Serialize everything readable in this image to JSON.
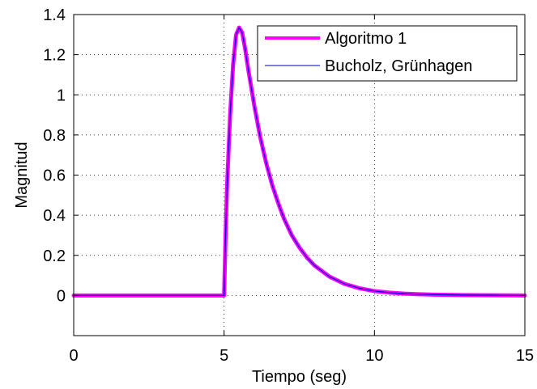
{
  "chart_data": {
    "type": "line",
    "title": "",
    "xlabel": "Tiempo (seg)",
    "ylabel": "Magnitud",
    "xlim": [
      0,
      15
    ],
    "ylim": [
      -0.2,
      1.4
    ],
    "xticks": [
      0,
      5,
      10,
      15
    ],
    "yticks": [
      0,
      0.2,
      0.4,
      0.6,
      0.8,
      1,
      1.2,
      1.4
    ],
    "xtick_labels": [
      "0",
      "5",
      "10",
      "15"
    ],
    "ytick_labels": [
      "0",
      "0.2",
      "0.4",
      "0.6",
      "0.8",
      "1",
      "1.2",
      "1.4"
    ],
    "grid": true,
    "legend_position": "top-right",
    "series": [
      {
        "name": "Algoritmo 1",
        "color": "#ff00ff",
        "x": [
          0,
          4.9,
          5.0,
          5.05,
          5.1,
          5.2,
          5.3,
          5.4,
          5.5,
          5.6,
          5.7,
          5.8,
          6.0,
          6.2,
          6.4,
          6.6,
          6.8,
          7.0,
          7.25,
          7.5,
          7.75,
          8.0,
          8.5,
          9.0,
          9.5,
          10.0,
          10.5,
          11.0,
          11.5,
          12.0,
          13.0,
          14.0,
          15.0
        ],
        "y": [
          0,
          0,
          0,
          0.3,
          0.55,
          0.9,
          1.15,
          1.3,
          1.335,
          1.31,
          1.23,
          1.13,
          0.95,
          0.79,
          0.66,
          0.55,
          0.46,
          0.38,
          0.3,
          0.24,
          0.19,
          0.15,
          0.094,
          0.058,
          0.036,
          0.022,
          0.014,
          0.009,
          0.006,
          0.004,
          0.002,
          0.001,
          0
        ]
      },
      {
        "name": "Bucholz, Grünhagen",
        "color": "#0000c8",
        "x": [
          0,
          4.9,
          5.0,
          5.05,
          5.1,
          5.2,
          5.3,
          5.4,
          5.5,
          5.6,
          5.7,
          5.8,
          6.0,
          6.2,
          6.4,
          6.6,
          6.8,
          7.0,
          7.25,
          7.5,
          7.75,
          8.0,
          8.5,
          9.0,
          9.5,
          10.0,
          10.5,
          11.0,
          11.5,
          12.0,
          13.0,
          14.0,
          15.0
        ],
        "y": [
          0,
          0,
          0,
          0.3,
          0.55,
          0.9,
          1.15,
          1.3,
          1.335,
          1.31,
          1.23,
          1.13,
          0.95,
          0.79,
          0.66,
          0.55,
          0.46,
          0.38,
          0.3,
          0.24,
          0.19,
          0.15,
          0.094,
          0.058,
          0.036,
          0.022,
          0.014,
          0.009,
          0.006,
          0.004,
          0.002,
          0.001,
          0
        ]
      }
    ]
  }
}
